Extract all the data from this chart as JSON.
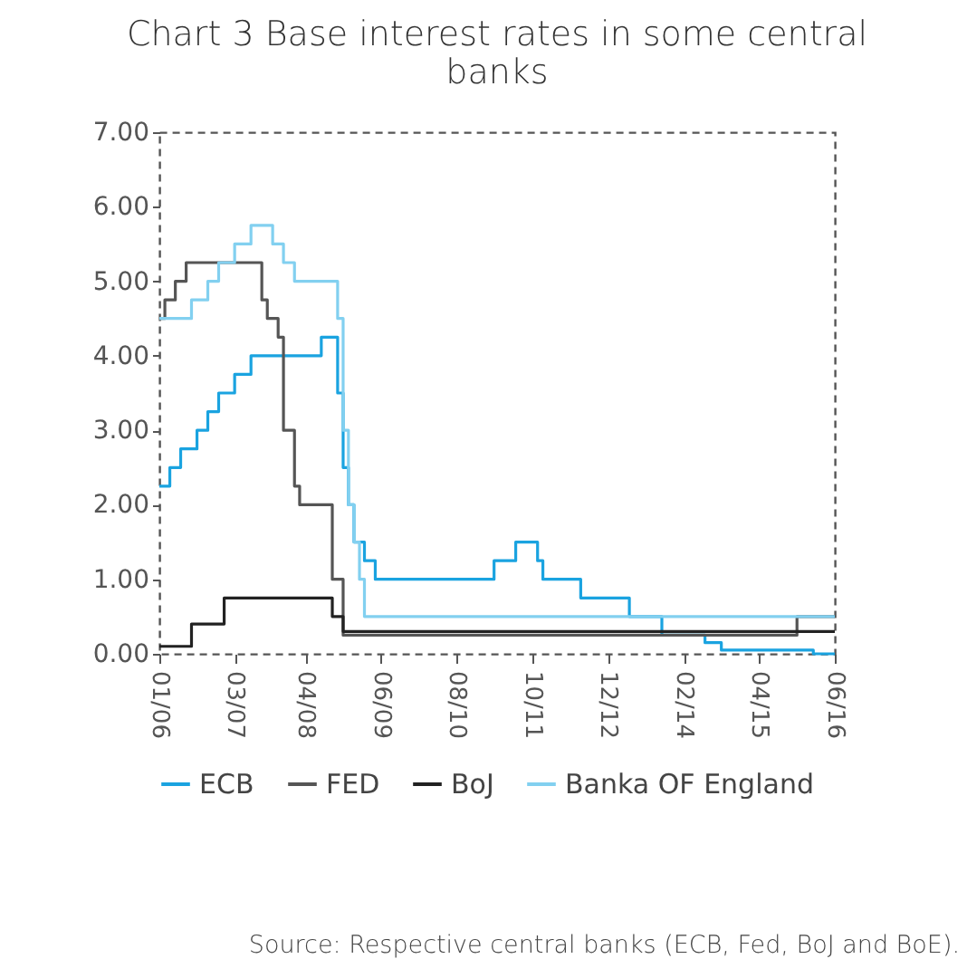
{
  "chart_data": {
    "type": "step",
    "title": "Chart 3 Base interest rates in some central banks",
    "annotations": [
      "Source: Respective central banks (ECB, Fed, BoJ and BoE)."
    ],
    "legend": "bottom",
    "grid": false,
    "line_style": "solid",
    "xlim": [
      "2006-01",
      "2016-06"
    ],
    "xticks": [
      {
        "value": "2006-01",
        "label": "01/06"
      },
      {
        "value": "2007-03",
        "label": "03/07"
      },
      {
        "value": "2008-04",
        "label": "04/08"
      },
      {
        "value": "2009-06",
        "label": "06/09"
      },
      {
        "value": "2010-08",
        "label": "08/10"
      },
      {
        "value": "2011-10",
        "label": "10/11"
      },
      {
        "value": "2012-12",
        "label": "12/12"
      },
      {
        "value": "2014-02",
        "label": "02/14"
      },
      {
        "value": "2015-04",
        "label": "04/15"
      },
      {
        "value": "2016-06",
        "label": "06/16"
      }
    ],
    "ylim": [
      0,
      7
    ],
    "yticks": [
      {
        "value": 0,
        "label": "0.00"
      },
      {
        "value": 1,
        "label": "1.00"
      },
      {
        "value": 2,
        "label": "2.00"
      },
      {
        "value": 3,
        "label": "3.00"
      },
      {
        "value": 4,
        "label": "4.00"
      },
      {
        "value": 5,
        "label": "5.00"
      },
      {
        "value": 6,
        "label": "6.00"
      },
      {
        "value": 7,
        "label": "7.00"
      }
    ],
    "series": [
      {
        "name": "ECB",
        "color": "#1aa3e0",
        "x": [
          "2006-01",
          "2006-03",
          "2006-05",
          "2006-08",
          "2006-10",
          "2006-12",
          "2007-03",
          "2007-06",
          "2008-07",
          "2008-10",
          "2008-11",
          "2008-12",
          "2009-01",
          "2009-03",
          "2009-05",
          "2011-03",
          "2011-07",
          "2011-11",
          "2011-12",
          "2012-07",
          "2013-04",
          "2013-10",
          "2014-06",
          "2014-09",
          "2016-02",
          "2016-06"
        ],
        "values": [
          2.25,
          2.5,
          2.75,
          3.0,
          3.25,
          3.5,
          3.75,
          4.0,
          4.25,
          3.5,
          2.5,
          2.0,
          1.5,
          1.25,
          1.0,
          1.25,
          1.5,
          1.25,
          1.0,
          0.75,
          0.5,
          0.25,
          0.15,
          0.05,
          0.0,
          0.0
        ]
      },
      {
        "name": "FED",
        "color": "#555555",
        "x": [
          "2006-01",
          "2006-02",
          "2006-04",
          "2006-06",
          "2007-08",
          "2007-09",
          "2007-11",
          "2007-12",
          "2008-02",
          "2008-03",
          "2008-09",
          "2008-11",
          "2015-11",
          "2016-06"
        ],
        "values": [
          4.5,
          4.75,
          5.0,
          5.25,
          4.75,
          4.5,
          4.25,
          3.0,
          2.25,
          2.0,
          1.0,
          0.25,
          0.5,
          0.5
        ]
      },
      {
        "name": "BoJ",
        "color": "#222222",
        "x": [
          "2006-01",
          "2006-07",
          "2007-01",
          "2008-09",
          "2008-11",
          "2016-06"
        ],
        "values": [
          0.1,
          0.4,
          0.75,
          0.5,
          0.3,
          0.3
        ]
      },
      {
        "name": "Banka OF England",
        "color": "#82d0f0",
        "x": [
          "2006-01",
          "2006-07",
          "2006-10",
          "2006-12",
          "2007-03",
          "2007-06",
          "2007-10",
          "2007-12",
          "2008-02",
          "2008-07",
          "2008-10",
          "2008-11",
          "2008-12",
          "2009-01",
          "2009-02",
          "2009-03",
          "2016-06"
        ],
        "values": [
          4.5,
          4.75,
          5.0,
          5.25,
          5.5,
          5.75,
          5.5,
          5.25,
          5.0,
          5.0,
          4.5,
          3.0,
          2.0,
          1.5,
          1.0,
          0.5,
          0.5
        ]
      }
    ]
  }
}
